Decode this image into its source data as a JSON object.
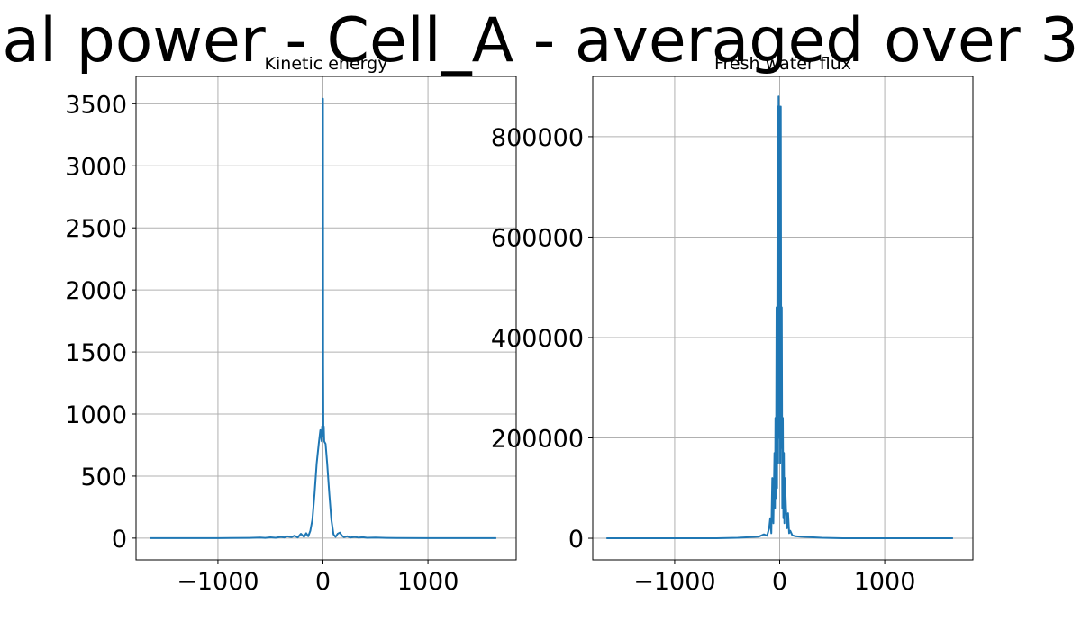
{
  "figure": {
    "suptitle": "al power - Cell_A - averaged over 3",
    "line_color": "#1f77b4",
    "grid": true
  },
  "chart_data": [
    {
      "type": "line",
      "title": "Kinetic energy",
      "xlabel": "",
      "ylabel": "",
      "xlim": [
        -1780,
        1840
      ],
      "ylim": [
        -175,
        3720
      ],
      "xticks": [
        -1000,
        0,
        1000
      ],
      "xtick_labels": [
        "−1000",
        "0",
        "1000"
      ],
      "yticks": [
        0,
        500,
        1000,
        1500,
        2000,
        2500,
        3000,
        3500
      ],
      "ytick_labels": [
        "0",
        "500",
        "1000",
        "1500",
        "2000",
        "2500",
        "3000",
        "3500"
      ],
      "series": [
        {
          "x": [
            -1650,
            -1000,
            -700,
            -600,
            -550,
            -500,
            -450,
            -400,
            -370,
            -340,
            -300,
            -270,
            -240,
            -210,
            -180,
            -160,
            -140,
            -120,
            -100,
            -80,
            -60,
            -40,
            -25,
            -12,
            -8,
            -4,
            -2,
            0,
            2,
            4,
            8,
            12,
            25,
            40,
            60,
            80,
            100,
            120,
            140,
            160,
            180,
            200,
            230,
            260,
            300,
            340,
            380,
            420,
            500,
            600,
            700,
            1000,
            1650
          ],
          "y": [
            0,
            0,
            2,
            4,
            2,
            6,
            3,
            10,
            5,
            14,
            8,
            20,
            5,
            35,
            10,
            40,
            15,
            60,
            150,
            360,
            600,
            760,
            870,
            780,
            900,
            820,
            1400,
            3540,
            1400,
            820,
            900,
            780,
            760,
            600,
            360,
            150,
            30,
            10,
            35,
            45,
            20,
            8,
            15,
            5,
            10,
            4,
            7,
            3,
            4,
            2,
            1,
            0,
            0
          ]
        }
      ]
    },
    {
      "type": "line",
      "title": "Fresh water flux",
      "xlabel": "",
      "ylabel": "",
      "xlim": [
        -1780,
        1840
      ],
      "ylim": [
        -43000,
        920000
      ],
      "xticks": [
        -1000,
        0,
        1000
      ],
      "xtick_labels": [
        "−1000",
        "0",
        "1000"
      ],
      "yticks": [
        0,
        200000,
        400000,
        600000,
        800000
      ],
      "ytick_labels": [
        "0",
        "200000",
        "400000",
        "600000",
        "800000"
      ],
      "series": [
        {
          "x": [
            -1650,
            -600,
            -400,
            -300,
            -200,
            -150,
            -120,
            -100,
            -90,
            -80,
            -70,
            -60,
            -50,
            -45,
            -40,
            -35,
            -30,
            -25,
            -20,
            -15,
            -10,
            -5,
            0,
            5,
            10,
            15,
            20,
            25,
            30,
            35,
            40,
            45,
            50,
            60,
            70,
            80,
            90,
            100,
            120,
            150,
            200,
            300,
            400,
            500,
            600,
            1650
          ],
          "y": [
            0,
            0,
            1000,
            2000,
            3000,
            8000,
            5000,
            20000,
            40000,
            10000,
            120000,
            30000,
            170000,
            60000,
            240000,
            80000,
            460000,
            100000,
            860000,
            150000,
            880000,
            200000,
            860000,
            150000,
            860000,
            180000,
            460000,
            60000,
            240000,
            40000,
            170000,
            30000,
            120000,
            60000,
            20000,
            50000,
            10000,
            15000,
            6000,
            4000,
            3000,
            2000,
            1000,
            500,
            0,
            0
          ]
        }
      ]
    }
  ]
}
